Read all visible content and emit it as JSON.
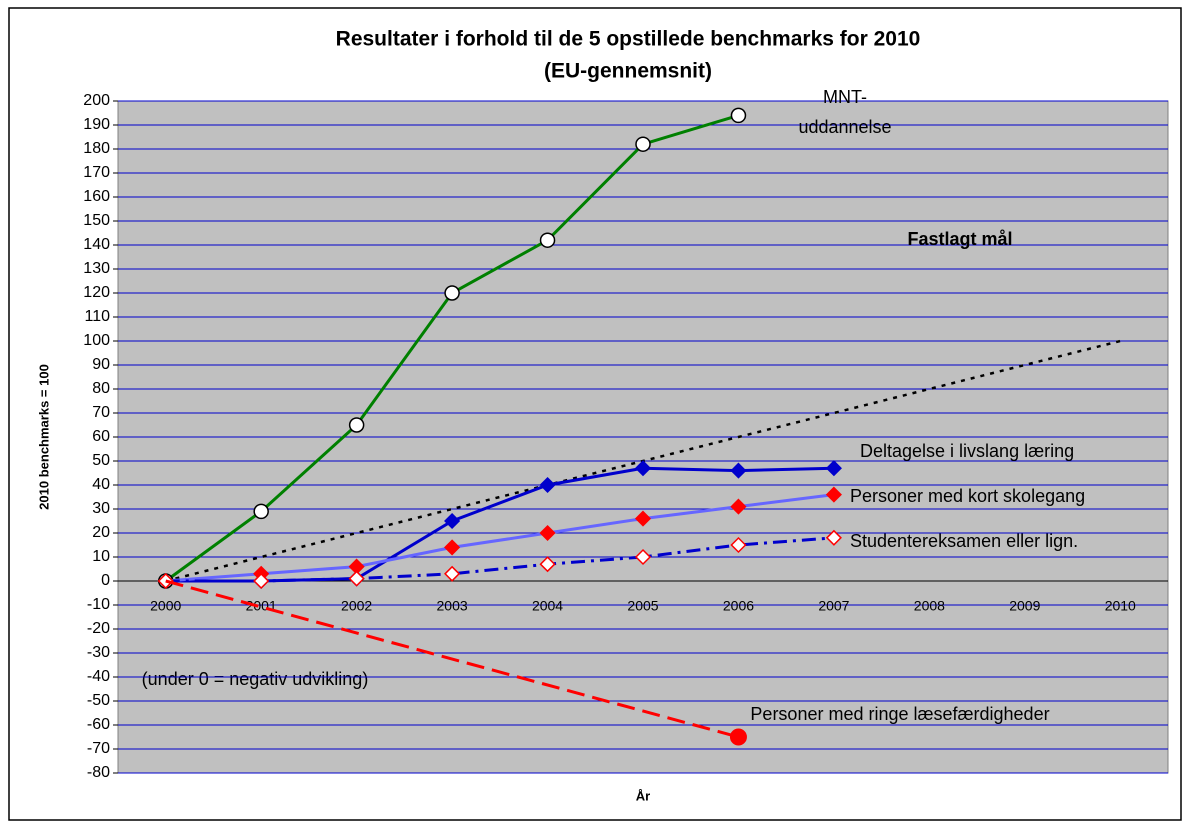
{
  "chart_data": {
    "type": "line",
    "title": [
      "Resultater i forhold til de 5 opstillede benchmarks for 2010",
      "(EU-gennemsnit)"
    ],
    "xlabel": "År",
    "ylabel": "2010 benchmarks = 100",
    "annotations": [
      "(under 0 = negativ udvikling)"
    ],
    "categories": [
      "2000",
      "2001",
      "2002",
      "2003",
      "2004",
      "2005",
      "2006",
      "2007",
      "2008",
      "2009",
      "2010"
    ],
    "ylim": [
      -80,
      200
    ],
    "yticks": [
      200,
      190,
      180,
      170,
      160,
      150,
      140,
      130,
      120,
      110,
      100,
      90,
      80,
      70,
      60,
      50,
      40,
      30,
      20,
      10,
      0,
      -10,
      -20,
      -30,
      -40,
      -50,
      -60,
      -70,
      -80
    ],
    "grid": true,
    "series": [
      {
        "name": "MNT-\nuddannelse",
        "color": "#008000",
        "marker": "circle",
        "marker_fill": "#ffffff",
        "marker_stroke": "#000000",
        "dash": "none",
        "values": [
          0,
          29,
          65,
          120,
          142,
          182,
          194,
          null,
          null,
          null,
          null
        ]
      },
      {
        "name": "Fastlagt mål",
        "color": "#000000",
        "marker": "none",
        "dash": "4 6",
        "bold": true,
        "values": [
          0,
          10,
          20,
          30,
          40,
          50,
          60,
          70,
          80,
          90,
          100
        ]
      },
      {
        "name": "Deltagelse i livslang læring",
        "color": "#0000cc",
        "marker": "diamond",
        "marker_fill": "#0000cc",
        "marker_stroke": "#0000cc",
        "dash": "none",
        "values": [
          0,
          0,
          1,
          25,
          40,
          47,
          46,
          47,
          null,
          null,
          null
        ]
      },
      {
        "name": "Personer med kort skolegang",
        "color": "#6666ff",
        "marker": "diamond",
        "marker_fill": "#ff0000",
        "marker_stroke": "#ff0000",
        "dash": "none",
        "values": [
          0,
          3,
          6,
          14,
          20,
          26,
          31,
          36,
          null,
          null,
          null
        ]
      },
      {
        "name": "Studentereksamen eller lign.",
        "color": "#0000cc",
        "marker": "diamond",
        "marker_fill": "#ffffff",
        "marker_stroke": "#ff0000",
        "dash": "14 6 3 6",
        "values": [
          0,
          0,
          1,
          3,
          7,
          10,
          15,
          18,
          null,
          null,
          null
        ]
      },
      {
        "name": "Personer med ringe læsefærdigheder",
        "color": "#ff0000",
        "marker": "bigcircle",
        "marker_fill": "#ff0000",
        "marker_stroke": "#ff0000",
        "dash": "18 8",
        "values": [
          0,
          null,
          null,
          null,
          null,
          null,
          -65,
          null,
          null,
          null,
          null
        ]
      }
    ]
  }
}
